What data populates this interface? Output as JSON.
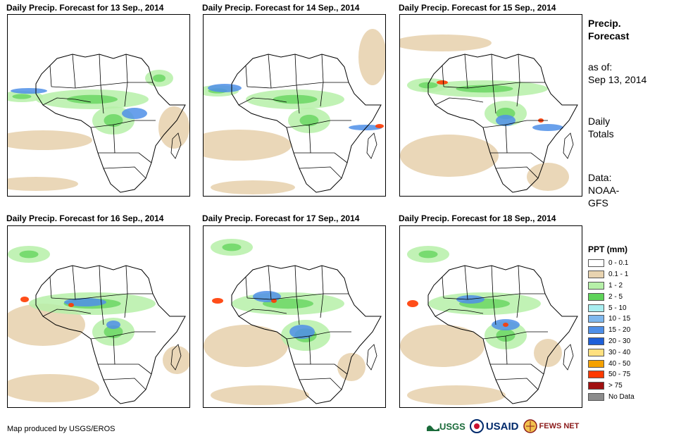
{
  "panels": [
    {
      "title": "Daily Precip. Forecast for 13 Sep., 2014"
    },
    {
      "title": "Daily Precip. Forecast for 14 Sep., 2014"
    },
    {
      "title": "Daily Precip. Forecast for 15 Sep., 2014"
    },
    {
      "title": "Daily Precip. Forecast for 16 Sep., 2014"
    },
    {
      "title": "Daily Precip. Forecast for 17 Sep., 2014"
    },
    {
      "title": "Daily Precip. Forecast for 18 Sep., 2014"
    }
  ],
  "side": {
    "title_line1": "Precip.",
    "title_line2": "Forecast",
    "asof_line1": "as of:",
    "asof_line2": "Sep 13, 2014",
    "totals_line1": "Daily",
    "totals_line2": "Totals",
    "data_line1": "Data:",
    "data_line2": "NOAA-",
    "data_line3": "GFS"
  },
  "legend": {
    "title": "PPT (mm)",
    "items": [
      {
        "label": "0 - 0.1",
        "color": "#ffffff"
      },
      {
        "label": "0.1 - 1",
        "color": "#e8d3b0"
      },
      {
        "label": "1 - 2",
        "color": "#b6f0a8"
      },
      {
        "label": "2 - 5",
        "color": "#5fd35a"
      },
      {
        "label": "5 - 10",
        "color": "#a8eef0"
      },
      {
        "label": "10 - 15",
        "color": "#7fb8ee"
      },
      {
        "label": "15 - 20",
        "color": "#4f8fe8"
      },
      {
        "label": "20 - 30",
        "color": "#1e5fd8"
      },
      {
        "label": "30 - 40",
        "color": "#ffe080"
      },
      {
        "label": "40 - 50",
        "color": "#f5a100"
      },
      {
        "label": "50 - 75",
        "color": "#ff3a00"
      },
      {
        "label": "> 75",
        "color": "#a01010"
      },
      {
        "label": "No Data",
        "color": "#8c8c8c"
      }
    ]
  },
  "credit": "Map produced by USGS/EROS",
  "logos": {
    "usgs": "USGS",
    "usaid": "USAID",
    "fews": "FEWS NET"
  }
}
